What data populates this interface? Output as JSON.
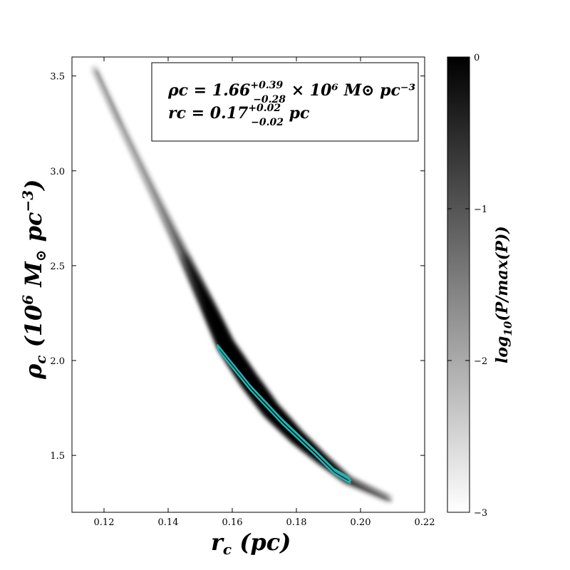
{
  "chart_data": {
    "type": "heatmap",
    "title": "",
    "xlabel": "r_c (pc)",
    "ylabel": "ρ_c (10^6 M_⊙ pc^-3)",
    "xlim": [
      0.11,
      0.22
    ],
    "ylim": [
      1.2,
      3.6
    ],
    "xticks": [
      "0.12",
      "0.14",
      "0.16",
      "0.18",
      "0.20",
      "0.22"
    ],
    "yticks": [
      "1.5",
      "2.0",
      "2.5",
      "3.0",
      "3.5"
    ],
    "xtick_values": [
      0.12,
      0.14,
      0.16,
      0.18,
      0.2,
      0.22
    ],
    "ytick_values": [
      1.5,
      2.0,
      2.5,
      3.0,
      3.5
    ],
    "density_ridge": [
      {
        "x": 0.117,
        "y": 3.54
      },
      {
        "x": 0.125,
        "y": 3.25
      },
      {
        "x": 0.135,
        "y": 2.9
      },
      {
        "x": 0.145,
        "y": 2.55
      },
      {
        "x": 0.152,
        "y": 2.3
      },
      {
        "x": 0.158,
        "y": 2.08
      },
      {
        "x": 0.165,
        "y": 1.9
      },
      {
        "x": 0.172,
        "y": 1.74
      },
      {
        "x": 0.18,
        "y": 1.6
      },
      {
        "x": 0.188,
        "y": 1.48
      },
      {
        "x": 0.196,
        "y": 1.37
      },
      {
        "x": 0.209,
        "y": 1.27
      }
    ],
    "contour_color": "#1fb5b5",
    "contour_region": [
      {
        "x": 0.155,
        "y": 2.07
      },
      {
        "x": 0.165,
        "y": 1.86
      },
      {
        "x": 0.175,
        "y": 1.68
      },
      {
        "x": 0.185,
        "y": 1.52
      },
      {
        "x": 0.191,
        "y": 1.42
      },
      {
        "x": 0.196,
        "y": 1.37
      }
    ],
    "colorbar": {
      "label": "log₁₀(P/max(P))",
      "range": [
        -3,
        0
      ],
      "ticks": [
        "0",
        "−1",
        "−2",
        "−3"
      ],
      "tick_values": [
        0,
        -1,
        -2,
        -3
      ],
      "colormap": "grey"
    },
    "annotation": {
      "rho": {
        "main": "ρc = 1.66",
        "sup": "+0.39",
        "sub": "−0.28",
        "tail": " × 10⁶ M⊙ pc⁻³"
      },
      "rc": {
        "main": "rc = 0.17",
        "sup": "+0.02",
        "sub": "−0.02",
        "tail": " pc"
      }
    }
  }
}
